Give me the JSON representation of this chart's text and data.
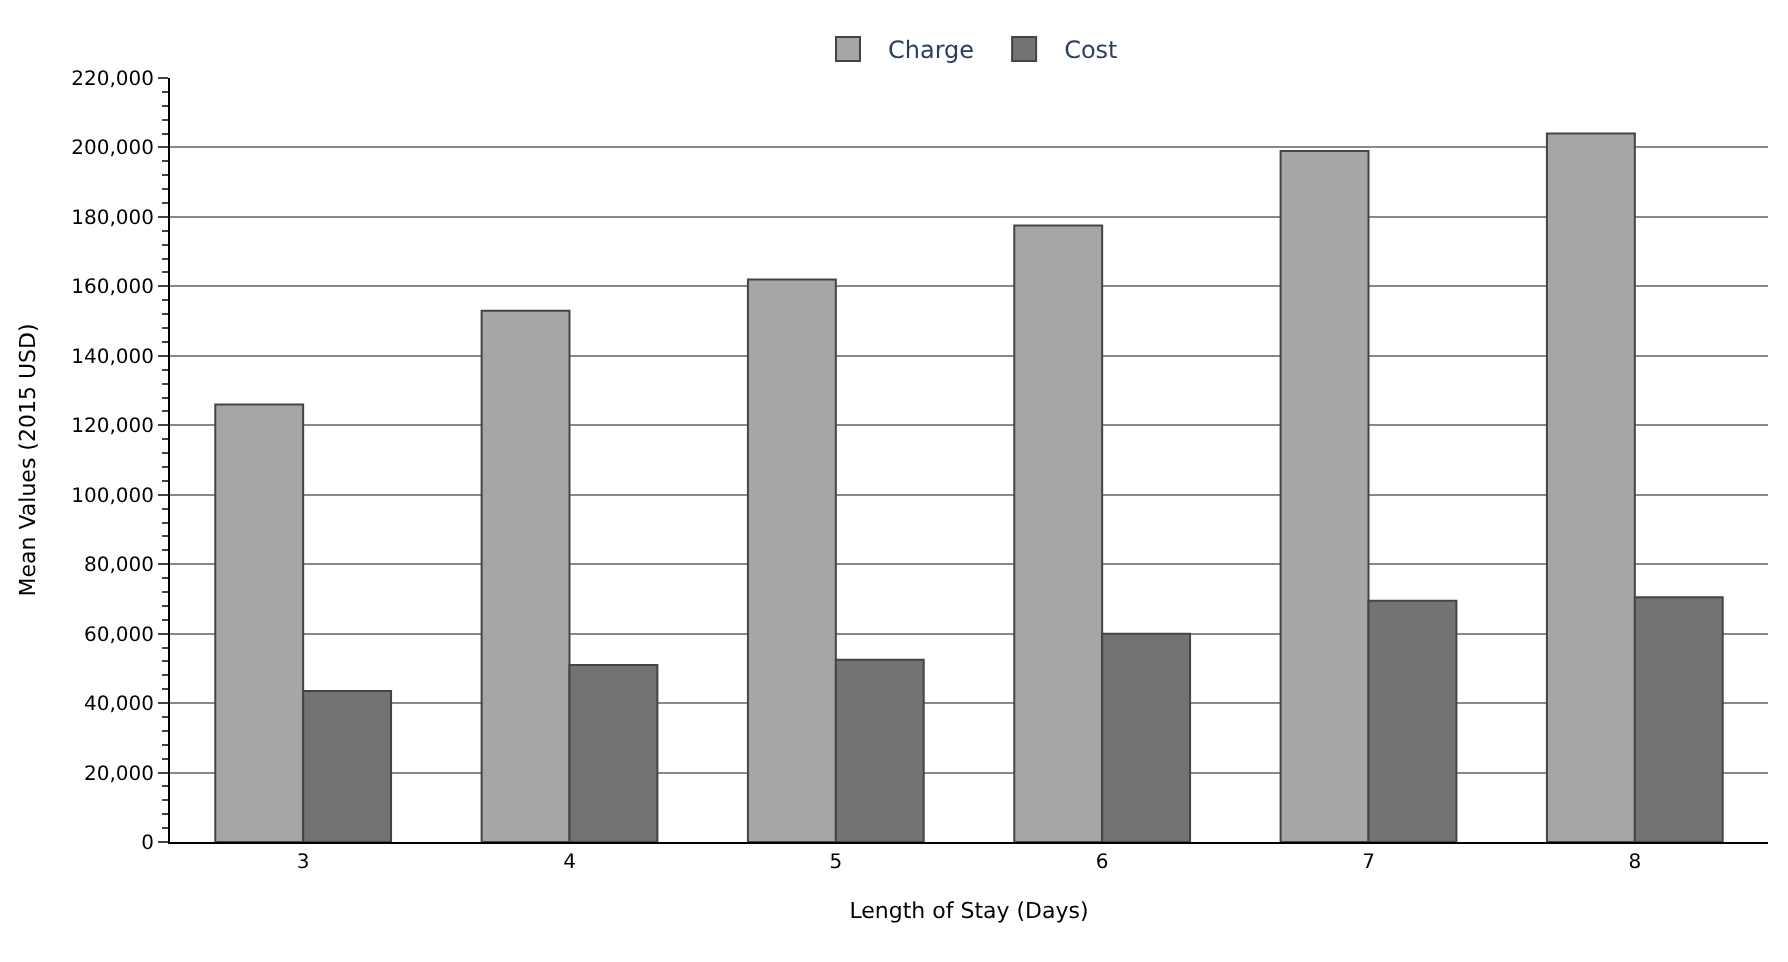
{
  "chart_data": {
    "type": "bar",
    "xlabel": "Length of Stay (Days)",
    "ylabel": "Mean Values (2015 USD)",
    "categories": [
      "3",
      "4",
      "5",
      "6",
      "7",
      "8"
    ],
    "series": [
      {
        "name": "Charge",
        "color": "#a6a6a6",
        "values": [
          126000,
          153000,
          162000,
          177500,
          199000,
          204000
        ]
      },
      {
        "name": "Cost",
        "color": "#737373",
        "values": [
          43500,
          51000,
          52500,
          60000,
          69500,
          70500
        ]
      }
    ],
    "ylim": [
      0,
      220000
    ],
    "yticks": [
      {
        "value": 0,
        "label": "0"
      },
      {
        "value": 20000,
        "label": "20,000"
      },
      {
        "value": 40000,
        "label": "40,000"
      },
      {
        "value": 60000,
        "label": "60,000"
      },
      {
        "value": 80000,
        "label": "80,000"
      },
      {
        "value": 100000,
        "label": "100,000"
      },
      {
        "value": 120000,
        "label": "120,000"
      },
      {
        "value": 140000,
        "label": "140,000"
      },
      {
        "value": 160000,
        "label": "160,000"
      },
      {
        "value": 180000,
        "label": "180,000"
      },
      {
        "value": 200000,
        "label": "200,000"
      },
      {
        "value": 220000,
        "label": "220,000"
      }
    ],
    "grid": "y",
    "legend": "top"
  }
}
